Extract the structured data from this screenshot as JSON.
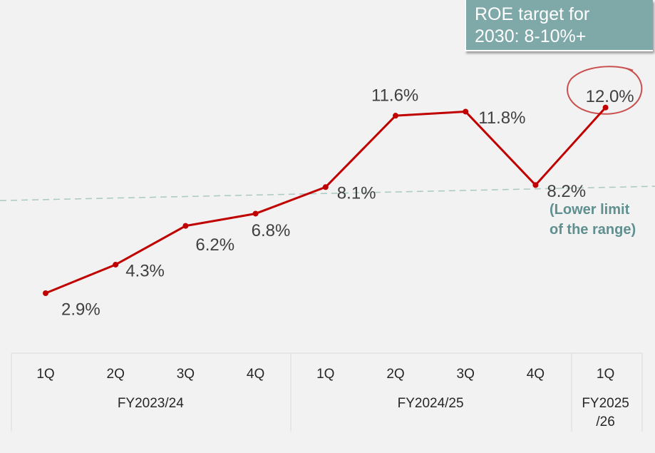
{
  "chart_data": {
    "type": "line",
    "categories": [
      "1Q",
      "2Q",
      "3Q",
      "4Q",
      "1Q",
      "2Q",
      "3Q",
      "4Q",
      "1Q"
    ],
    "groups": [
      {
        "label": "FY2023/24",
        "span": 4
      },
      {
        "label": "FY2024/25",
        "span": 4
      },
      {
        "label": "FY2025 /26",
        "lines": [
          "FY2025",
          "/26"
        ],
        "span": 1
      }
    ],
    "series": [
      {
        "values": [
          2.9,
          4.3,
          6.2,
          6.8,
          8.1,
          11.6,
          11.8,
          8.2,
          12.0
        ],
        "color": "#c00000"
      }
    ],
    "data_labels": [
      "2.9%",
      "4.3%",
      "6.2%",
      "6.8%",
      "8.1%",
      "11.6%",
      "11.8%",
      "8.2%",
      "12.0%"
    ],
    "reference_line": {
      "value": 8.0,
      "style": "dashed",
      "color": "#a9c9c4"
    },
    "highlight": {
      "index": 8,
      "style": "hand-drawn circle",
      "color": "#c9504f"
    },
    "target_box": {
      "lines": [
        "ROE target for",
        "2030: 8-10%+"
      ],
      "background": "#7fa8a8"
    },
    "reference_note": {
      "lines": [
        "(Lower limit",
        "of the range)"
      ],
      "color": "#5f8f8f"
    },
    "axis_text_color": "#262626",
    "grid": false,
    "legend": "none"
  }
}
